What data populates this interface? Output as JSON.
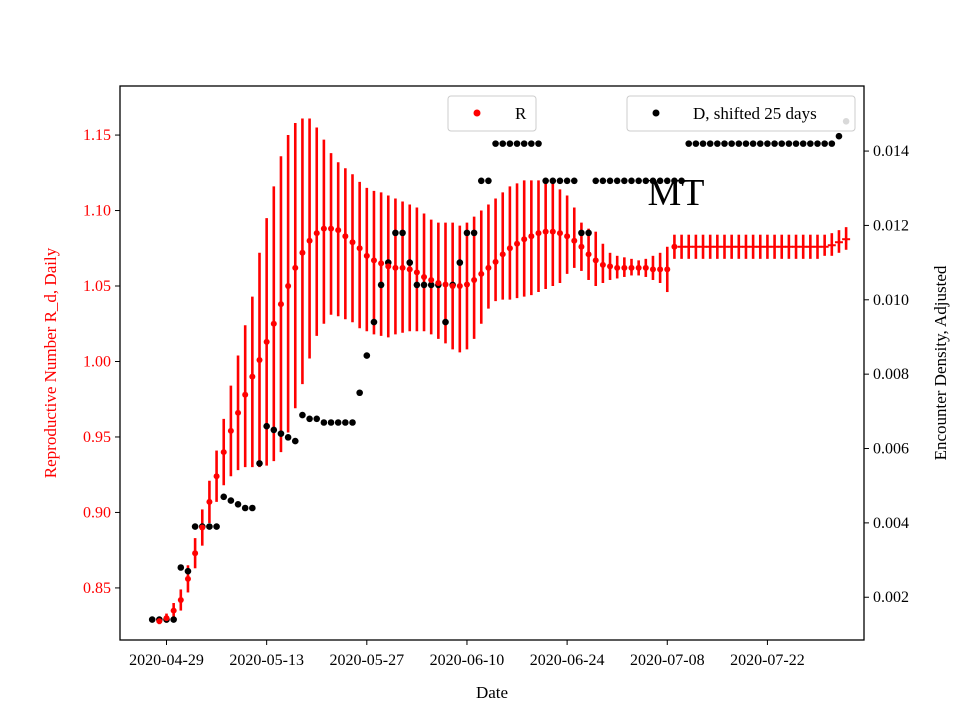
{
  "chart_data": {
    "type": "scatter",
    "annotation": "MT",
    "xlabel": "Date",
    "ylabel_left": "Reproductive Number R_d, Daily",
    "ylabel_right": "Encounter Density, Adjusted",
    "x_tick_labels": [
      "2020-04-29",
      "2020-05-13",
      "2020-05-27",
      "2020-06-10",
      "2020-06-24",
      "2020-07-08",
      "2020-07-22"
    ],
    "x_tick_days": [
      0,
      14,
      28,
      42,
      56,
      70,
      84
    ],
    "xlim_days": [
      -6.5,
      97.5
    ],
    "ylim_left": [
      0.8155,
      1.1825
    ],
    "y_ticks_left": [
      "0.85",
      "0.90",
      "0.95",
      "1.00",
      "1.05",
      "1.10",
      "1.15"
    ],
    "ylim_right": [
      0.00085,
      0.01575
    ],
    "y_ticks_right": [
      "0.002",
      "0.004",
      "0.006",
      "0.008",
      "0.010",
      "0.012",
      "0.014"
    ],
    "colors": {
      "R": "#ff0000",
      "D": "#000000",
      "axes": "#000000"
    },
    "legend": [
      {
        "label": "R",
        "color": "#ff0000",
        "position": "upper-center"
      },
      {
        "label": "D, shifted 25 days",
        "color": "#000000",
        "position": "upper-right"
      }
    ],
    "series_R": {
      "name": "R",
      "days": [
        -1,
        0,
        1,
        2,
        3,
        4,
        5,
        6,
        7,
        8,
        9,
        10,
        11,
        12,
        13,
        14,
        15,
        16,
        17,
        18,
        19,
        20,
        21,
        22,
        23,
        24,
        25,
        26,
        27,
        28,
        29,
        30,
        31,
        32,
        33,
        34,
        35,
        36,
        37,
        38,
        39,
        40,
        41,
        42,
        43,
        44,
        45,
        46,
        47,
        48,
        49,
        50,
        51,
        52,
        53,
        54,
        55,
        56,
        57,
        58,
        59,
        60,
        61,
        62,
        63,
        64,
        65,
        66,
        67,
        68,
        69,
        70,
        71,
        72,
        73,
        74,
        75,
        76,
        77,
        78,
        79,
        80,
        81,
        82,
        83,
        84,
        85,
        86,
        87,
        88,
        89,
        90,
        91,
        92,
        93,
        94,
        95
      ],
      "values": [
        0.828,
        0.83,
        0.835,
        0.842,
        0.856,
        0.873,
        0.89,
        0.907,
        0.924,
        0.94,
        0.954,
        0.966,
        0.978,
        0.99,
        1.001,
        1.013,
        1.025,
        1.038,
        1.05,
        1.062,
        1.072,
        1.08,
        1.085,
        1.088,
        1.088,
        1.087,
        1.083,
        1.079,
        1.075,
        1.07,
        1.067,
        1.065,
        1.063,
        1.062,
        1.062,
        1.061,
        1.059,
        1.056,
        1.054,
        1.052,
        1.051,
        1.05,
        1.05,
        1.051,
        1.054,
        1.058,
        1.062,
        1.066,
        1.071,
        1.075,
        1.078,
        1.081,
        1.083,
        1.085,
        1.086,
        1.086,
        1.085,
        1.083,
        1.08,
        1.076,
        1.071,
        1.067,
        1.064,
        1.063,
        1.062,
        1.062,
        1.062,
        1.062,
        1.062,
        1.061,
        1.061,
        1.061,
        1.076,
        1.076,
        1.076,
        1.076,
        1.076,
        1.076,
        1.076,
        1.076,
        1.076,
        1.076,
        1.076,
        1.076,
        1.076,
        1.076,
        1.076,
        1.076,
        1.076,
        1.076,
        1.076,
        1.076,
        1.076,
        1.076,
        1.077,
        1.079,
        1.081
      ],
      "err_low": [
        0.826,
        0.827,
        0.83,
        0.835,
        0.847,
        0.863,
        0.878,
        0.893,
        0.907,
        0.918,
        0.924,
        0.928,
        0.93,
        0.93,
        0.93,
        0.931,
        0.934,
        0.94,
        0.953,
        0.969,
        0.985,
        1.002,
        1.017,
        1.025,
        1.031,
        1.03,
        1.028,
        1.026,
        1.022,
        1.02,
        1.018,
        1.017,
        1.016,
        1.018,
        1.019,
        1.02,
        1.02,
        1.02,
        1.018,
        1.015,
        1.012,
        1.008,
        1.006,
        1.008,
        1.015,
        1.025,
        1.035,
        1.04,
        1.041,
        1.041,
        1.042,
        1.043,
        1.044,
        1.046,
        1.048,
        1.05,
        1.052,
        1.058,
        1.062,
        1.06,
        1.054,
        1.05,
        1.052,
        1.054,
        1.055,
        1.056,
        1.057,
        1.057,
        1.056,
        1.054,
        1.052,
        1.046,
        1.068,
        1.068,
        1.068,
        1.068,
        1.068,
        1.068,
        1.068,
        1.068,
        1.068,
        1.068,
        1.068,
        1.068,
        1.068,
        1.068,
        1.068,
        1.068,
        1.068,
        1.068,
        1.068,
        1.068,
        1.068,
        1.07,
        1.07,
        1.072,
        1.074
      ],
      "err_high": [
        0.83,
        0.833,
        0.84,
        0.849,
        0.865,
        0.883,
        0.902,
        0.921,
        0.941,
        0.962,
        0.984,
        1.004,
        1.024,
        1.043,
        1.072,
        1.095,
        1.116,
        1.136,
        1.15,
        1.158,
        1.161,
        1.161,
        1.155,
        1.147,
        1.138,
        1.132,
        1.128,
        1.124,
        1.119,
        1.115,
        1.113,
        1.112,
        1.11,
        1.108,
        1.106,
        1.104,
        1.102,
        1.098,
        1.094,
        1.092,
        1.092,
        1.092,
        1.09,
        1.092,
        1.096,
        1.1,
        1.104,
        1.108,
        1.112,
        1.116,
        1.118,
        1.12,
        1.12,
        1.12,
        1.12,
        1.118,
        1.114,
        1.11,
        1.102,
        1.092,
        1.088,
        1.086,
        1.078,
        1.072,
        1.07,
        1.069,
        1.068,
        1.067,
        1.068,
        1.07,
        1.072,
        1.076,
        1.084,
        1.084,
        1.084,
        1.084,
        1.084,
        1.084,
        1.084,
        1.084,
        1.084,
        1.084,
        1.084,
        1.084,
        1.084,
        1.084,
        1.084,
        1.084,
        1.084,
        1.084,
        1.084,
        1.084,
        1.084,
        1.084,
        1.085,
        1.087,
        1.089
      ]
    },
    "series_D": {
      "name": "D, shifted 25 days",
      "days": [
        -2,
        -1,
        0,
        1,
        2,
        3,
        4,
        5,
        6,
        7,
        8,
        9,
        10,
        11,
        12,
        13,
        14,
        15,
        16,
        17,
        18,
        19,
        20,
        21,
        22,
        23,
        24,
        25,
        26,
        27,
        28,
        29,
        30,
        31,
        32,
        33,
        34,
        35,
        36,
        37,
        38,
        39,
        40,
        41,
        42,
        43,
        44,
        45,
        46,
        47,
        48,
        49,
        50,
        51,
        52,
        53,
        54,
        55,
        56,
        57,
        58,
        59,
        60,
        61,
        62,
        63,
        64,
        65,
        66,
        67,
        68,
        69,
        70,
        71,
        72,
        73,
        74,
        75,
        76,
        77,
        78,
        79,
        80,
        81,
        82,
        83,
        84,
        85,
        86,
        87,
        88,
        89,
        90,
        91,
        92,
        93,
        94,
        95
      ],
      "values": [
        0.0014,
        0.0014,
        0.0014,
        0.0014,
        0.0028,
        0.0027,
        0.0039,
        0.0039,
        0.0039,
        0.0039,
        0.0047,
        0.0046,
        0.0045,
        0.0044,
        0.0044,
        0.0056,
        0.0066,
        0.0065,
        0.0064,
        0.0063,
        0.0062,
        0.0069,
        0.0068,
        0.0068,
        0.0067,
        0.0067,
        0.0067,
        0.0067,
        0.0067,
        0.0075,
        0.0085,
        0.0094,
        0.0104,
        0.011,
        0.0118,
        0.0118,
        0.011,
        0.0104,
        0.0104,
        0.0104,
        0.0104,
        0.0094,
        0.0104,
        0.011,
        0.0118,
        0.0118,
        0.0132,
        0.0132,
        0.0142,
        0.0142,
        0.0142,
        0.0142,
        0.0142,
        0.0142,
        0.0142,
        0.0132,
        0.0132,
        0.0132,
        0.0132,
        0.0132,
        0.0118,
        0.0118,
        0.0132,
        0.0132,
        0.0132,
        0.0132,
        0.0132,
        0.0132,
        0.0132,
        0.0132,
        0.0132,
        0.0132,
        0.0132,
        0.0132,
        0.0132,
        0.0142,
        0.0142,
        0.0142,
        0.0142,
        0.0142,
        0.0142,
        0.0142,
        0.0142,
        0.0142,
        0.0142,
        0.0142,
        0.0142,
        0.0142,
        0.0142,
        0.0142,
        0.0142,
        0.0142,
        0.0142,
        0.0142,
        0.0142,
        0.0142,
        0.0144,
        0.0148
      ]
    }
  }
}
